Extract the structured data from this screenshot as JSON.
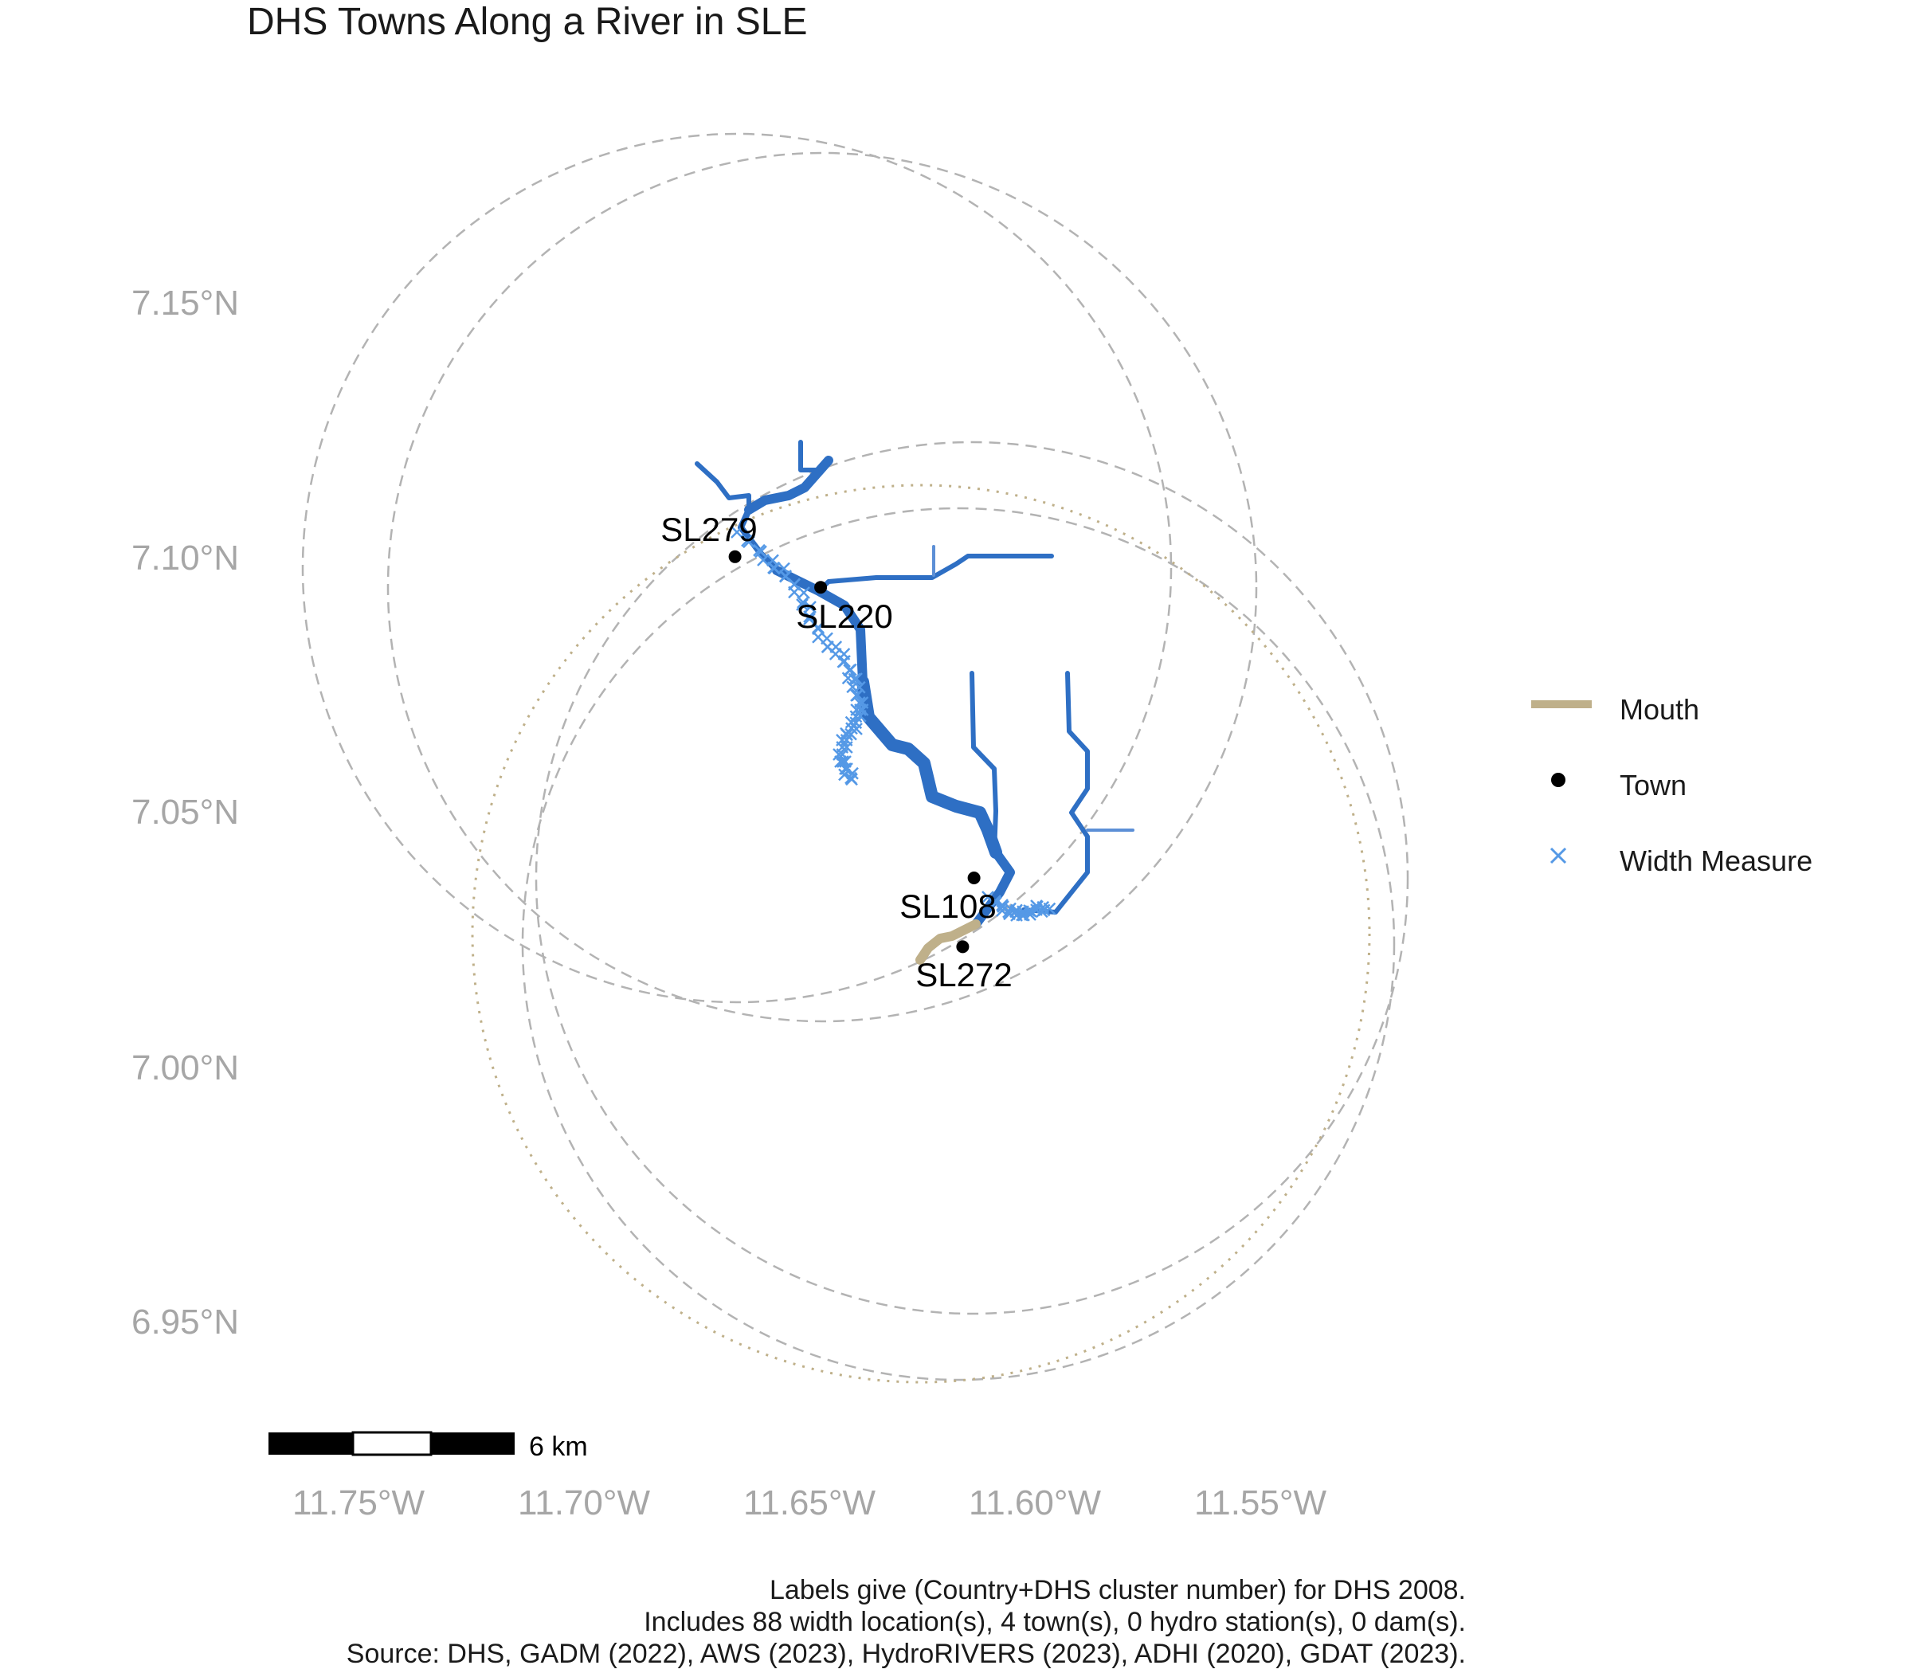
{
  "title": "DHS Towns Along a River in SLE",
  "axes": {
    "x_ticks": [
      "11.75°W",
      "11.70°W",
      "11.65°W",
      "11.60°W",
      "11.55°W"
    ],
    "y_ticks": [
      "7.15°N",
      "7.10°N",
      "7.05°N",
      "7.00°N",
      "6.95°N"
    ]
  },
  "towns": [
    {
      "label": "SL279",
      "lon": -11.6665,
      "lat": 7.1005
    },
    {
      "label": "SL220",
      "lon": -11.6475,
      "lat": 7.0945
    },
    {
      "label": "SL108",
      "lon": -11.6135,
      "lat": 7.0375
    },
    {
      "label": "SL272",
      "lon": -11.616,
      "lat": 7.024
    }
  ],
  "legend": {
    "items": [
      {
        "label": "Mouth",
        "symbol": "line",
        "color": "#bfb08a"
      },
      {
        "label": "Town",
        "symbol": "dot",
        "color": "#000000"
      },
      {
        "label": "Width Measure",
        "symbol": "cross",
        "color": "#5599e6"
      }
    ]
  },
  "scalebar": {
    "label": "6 km"
  },
  "caption": {
    "lines": [
      "Labels give (Country+DHS cluster number) for DHS 2008.",
      "Includes 88 width location(s), 4 town(s), 0 hydro station(s), 0 dam(s).",
      "Source: DHS, GADM (2022), AWS (2023), HydroRIVERS (2023), ADHI (2020), GDAT (2023)."
    ]
  },
  "colors": {
    "river": "#2e6fc4",
    "river_light": "#5c8fd6",
    "width_measure": "#5599e6",
    "mouth": "#bfb08a",
    "buffer_dashed": "#b3b3b3",
    "buffer_dotted": "#bfb08a"
  }
}
